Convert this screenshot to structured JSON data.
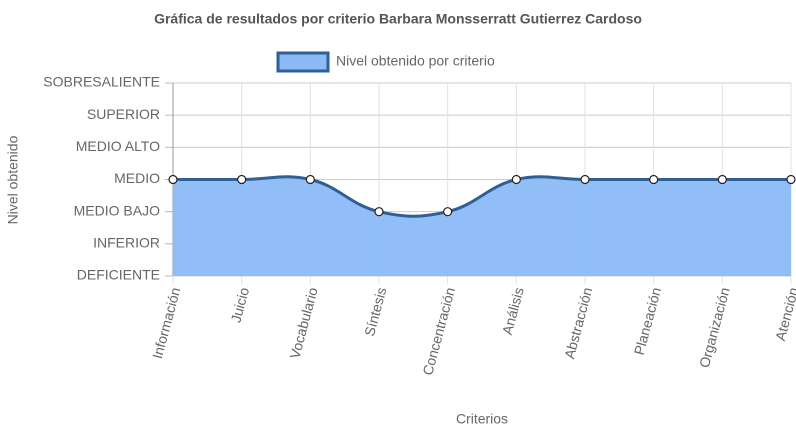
{
  "chart_data": {
    "type": "line",
    "title": "Gráfica de resultados por criterio Barbara Monsserratt Gutierrez Cardoso",
    "x_label": "Criterios",
    "y_label": "Nivel obtenido",
    "categories": [
      "Información",
      "Juicio",
      "Vocabulario",
      "Síntesis",
      "Concentración",
      "Análisis",
      "Abstracción",
      "Planeación",
      "Organización",
      "Atención"
    ],
    "series": [
      {
        "name": "Nivel obtenido por criterio",
        "color": "#2f5f94",
        "fill": "#8bbaf5",
        "values": [
          3,
          3,
          3,
          2,
          2,
          3,
          3,
          3,
          3,
          3
        ]
      }
    ],
    "ylim": [
      0,
      6
    ],
    "yticks": [
      {
        "value": 0,
        "label": "DEFICIENTE"
      },
      {
        "value": 1,
        "label": "INFERIOR"
      },
      {
        "value": 2,
        "label": "MEDIO BAJO"
      },
      {
        "value": 3,
        "label": "MEDIO"
      },
      {
        "value": 4,
        "label": "MEDIO ALTO"
      },
      {
        "value": 5,
        "label": "SUPERIOR"
      },
      {
        "value": 6,
        "label": "SOBRESALIENTE"
      }
    ],
    "grid": true,
    "legend": "top",
    "smooth": true
  }
}
